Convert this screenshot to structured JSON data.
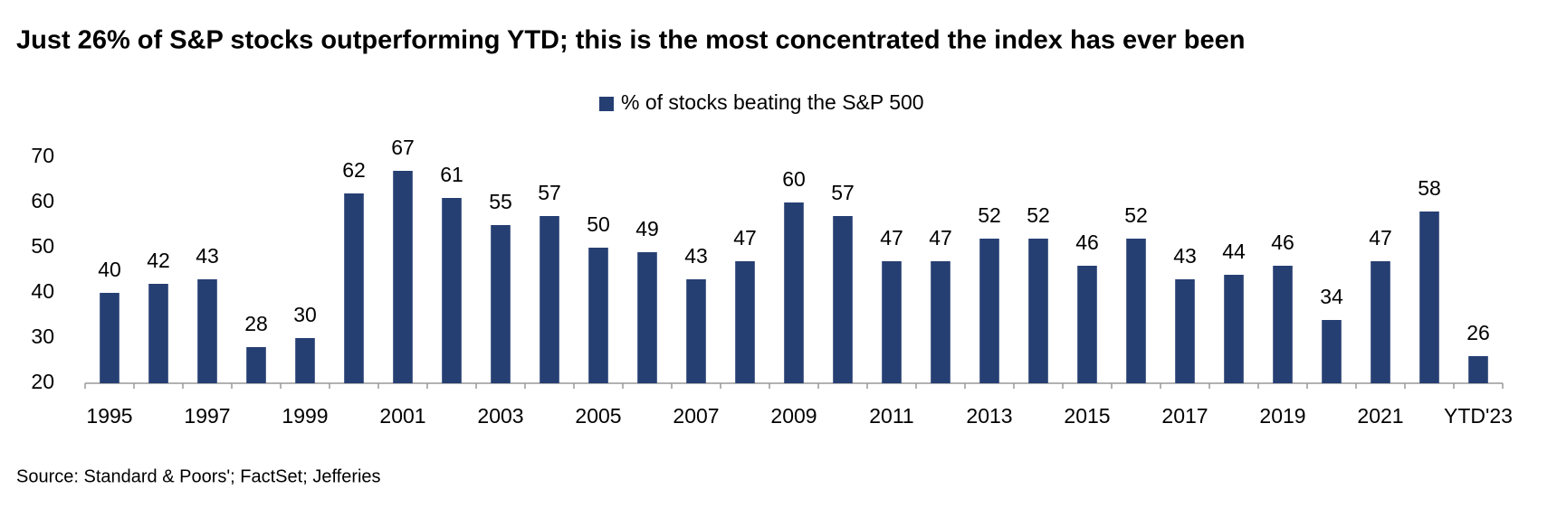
{
  "chart_data": {
    "type": "bar",
    "title": "Just 26% of S&P stocks outperforming YTD; this is the most concentrated the index has ever been",
    "source": "Source: Standard & Poors'; FactSet; Jefferies",
    "categories": [
      "1995",
      null,
      "1997",
      null,
      "1999",
      null,
      "2001",
      null,
      "2003",
      null,
      "2005",
      null,
      "2007",
      null,
      "2009",
      null,
      "2011",
      null,
      "2013",
      null,
      "2015",
      null,
      "2017",
      null,
      "2019",
      null,
      "2021",
      null,
      "YTD'23"
    ],
    "series": [
      {
        "name": "% of stocks beating the S&P 500",
        "color": "#263f73",
        "values": [
          40,
          42,
          43,
          28,
          30,
          62,
          67,
          61,
          55,
          57,
          50,
          49,
          43,
          47,
          60,
          57,
          47,
          47,
          52,
          52,
          46,
          52,
          43,
          44,
          46,
          34,
          47,
          58,
          26
        ]
      }
    ],
    "ylim": [
      20,
      70
    ],
    "yticks": [
      20,
      30,
      40,
      50,
      60,
      70
    ],
    "grid": false,
    "legend": "top"
  }
}
